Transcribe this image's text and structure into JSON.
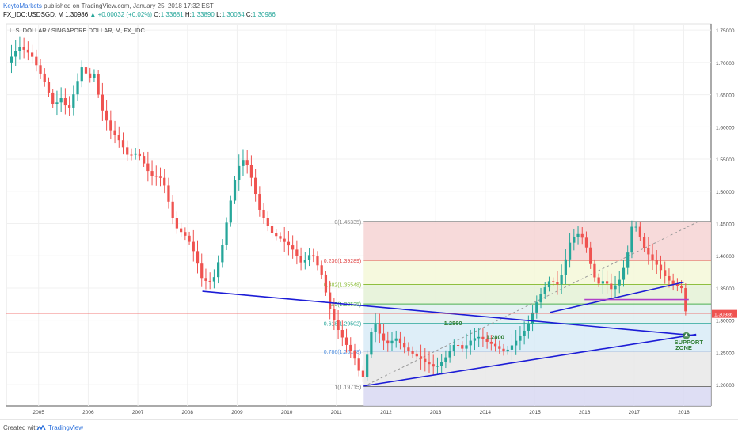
{
  "header": {
    "publisher": "KeytoMarkets",
    "published_text": "published on TradingView.com, January 25, 2018 17:32 EST",
    "symbol": "FX_IDC:USDSGD, M",
    "last": "1.30986",
    "change_arrow": "▲",
    "change": "+0.00032 (+0.02%)",
    "open_label": "O:",
    "open": "1.33681",
    "high_label": "H:",
    "high": "1.33890",
    "low_label": "L:",
    "low": "1.30034",
    "close_label": "C:",
    "close": "1.30986"
  },
  "footer": {
    "created_with": "Created with",
    "brand": "TradingView",
    "logo_icon": "tradingview-logo-icon"
  },
  "colors": {
    "up": "#26a69a",
    "down": "#ef5350",
    "trendline": "#1c1cd6",
    "resistance": "#b040c8",
    "brand": "#2a6fdb"
  },
  "chart_data": {
    "type": "candlestick",
    "title": "U.S. DOLLAR / SINGAPORE DOLLAR, M, FX_IDC",
    "xlabel": "",
    "ylabel": "",
    "x_ticks": [
      "2005",
      "2006",
      "2007",
      "2008",
      "2009",
      "2010",
      "2011",
      "2012",
      "2013",
      "2014",
      "2015",
      "2016",
      "2017",
      "2018"
    ],
    "y_ticks": [
      "1.20000",
      "1.25000",
      "1.30000",
      "1.35000",
      "1.40000",
      "1.45000",
      "1.50000",
      "1.55000",
      "1.60000",
      "1.65000",
      "1.70000",
      "1.75000"
    ],
    "ylim": [
      1.167,
      1.76
    ],
    "x_range": [
      2004.35,
      2018.55
    ],
    "grid": true,
    "last_price_label": "1.30986",
    "price_path": [
      [
        2004.37,
        1.7
      ],
      [
        2004.6,
        1.725
      ],
      [
        2004.85,
        1.712
      ],
      [
        2005.15,
        1.665
      ],
      [
        2005.3,
        1.632
      ],
      [
        2005.45,
        1.645
      ],
      [
        2005.6,
        1.625
      ],
      [
        2005.75,
        1.662
      ],
      [
        2005.9,
        1.7
      ],
      [
        2006.0,
        1.668
      ],
      [
        2006.1,
        1.69
      ],
      [
        2006.25,
        1.632
      ],
      [
        2006.45,
        1.595
      ],
      [
        2006.6,
        1.582
      ],
      [
        2006.8,
        1.555
      ],
      [
        2007.0,
        1.56
      ],
      [
        2007.25,
        1.525
      ],
      [
        2007.5,
        1.52
      ],
      [
        2007.75,
        1.445
      ],
      [
        2008.0,
        1.428
      ],
      [
        2008.15,
        1.402
      ],
      [
        2008.3,
        1.362
      ],
      [
        2008.45,
        1.36
      ],
      [
        2008.55,
        1.368
      ],
      [
        2008.7,
        1.415
      ],
      [
        2008.85,
        1.478
      ],
      [
        2009.0,
        1.535
      ],
      [
        2009.15,
        1.552
      ],
      [
        2009.25,
        1.532
      ],
      [
        2009.45,
        1.472
      ],
      [
        2009.7,
        1.435
      ],
      [
        2009.9,
        1.425
      ],
      [
        2010.1,
        1.412
      ],
      [
        2010.3,
        1.388
      ],
      [
        2010.5,
        1.405
      ],
      [
        2010.7,
        1.372
      ],
      [
        2010.85,
        1.322
      ],
      [
        2011.0,
        1.29
      ],
      [
        2011.2,
        1.262
      ],
      [
        2011.35,
        1.245
      ],
      [
        2011.45,
        1.222
      ],
      [
        2011.55,
        1.21
      ],
      [
        2011.65,
        1.262
      ],
      [
        2011.75,
        1.3
      ],
      [
        2011.85,
        1.282
      ],
      [
        2012.0,
        1.262
      ],
      [
        2012.2,
        1.272
      ],
      [
        2012.4,
        1.255
      ],
      [
        2012.6,
        1.245
      ],
      [
        2012.8,
        1.235
      ],
      [
        2013.0,
        1.226
      ],
      [
        2013.2,
        1.242
      ],
      [
        2013.4,
        1.265
      ],
      [
        2013.55,
        1.255
      ],
      [
        2013.7,
        1.268
      ],
      [
        2013.85,
        1.275
      ],
      [
        2014.0,
        1.268
      ],
      [
        2014.2,
        1.26
      ],
      [
        2014.4,
        1.25
      ],
      [
        2014.55,
        1.262
      ],
      [
        2014.7,
        1.275
      ],
      [
        2014.85,
        1.29
      ],
      [
        2015.0,
        1.322
      ],
      [
        2015.15,
        1.345
      ],
      [
        2015.3,
        1.362
      ],
      [
        2015.45,
        1.355
      ],
      [
        2015.55,
        1.372
      ],
      [
        2015.7,
        1.42
      ],
      [
        2015.85,
        1.435
      ],
      [
        2016.0,
        1.425
      ],
      [
        2016.1,
        1.392
      ],
      [
        2016.25,
        1.355
      ],
      [
        2016.4,
        1.362
      ],
      [
        2016.55,
        1.347
      ],
      [
        2016.7,
        1.362
      ],
      [
        2016.85,
        1.395
      ],
      [
        2016.95,
        1.445
      ],
      [
        2017.05,
        1.445
      ],
      [
        2017.2,
        1.412
      ],
      [
        2017.35,
        1.395
      ],
      [
        2017.5,
        1.382
      ],
      [
        2017.65,
        1.365
      ],
      [
        2017.8,
        1.355
      ],
      [
        2017.95,
        1.352
      ],
      [
        2018.0,
        1.32
      ],
      [
        2018.06,
        1.31
      ]
    ],
    "fibonacci": {
      "from": [
        2011.55,
        1.19715
      ],
      "to": [
        2018.3,
        1.45335
      ],
      "levels": [
        {
          "ratio": "0",
          "price": "1.45335",
          "value": 1.45335,
          "color": "#888888",
          "fill": "#f6d3d3"
        },
        {
          "ratio": "0.236",
          "price": "1.39289",
          "value": 1.39289,
          "color": "#e04848",
          "fill": "#f4f8d8"
        },
        {
          "ratio": "0.382",
          "price": "1.35548",
          "value": 1.35548,
          "color": "#8fbf3f",
          "fill": "#e4f1d6"
        },
        {
          "ratio": "0.5",
          "price": "1.32525",
          "value": 1.32525,
          "color": "#4caf50",
          "fill": "#dfeff0"
        },
        {
          "ratio": "0.618",
          "price": "1.29502",
          "value": 1.29502,
          "color": "#26a69a",
          "fill": "#d8ebf7"
        },
        {
          "ratio": "0.786",
          "price": "1.25198",
          "value": 1.25198,
          "color": "#4f8fe0",
          "fill": "#e8e8e8"
        },
        {
          "ratio": "1",
          "price": "1.19715",
          "value": 1.19715,
          "color": "#777777",
          "fill": "#d8d8f2"
        }
      ]
    },
    "lines": [
      {
        "name": "falling-trendline",
        "from": [
          2008.3,
          1.345
        ],
        "to": [
          2018.25,
          1.276
        ],
        "color": "#1c1cd6"
      },
      {
        "name": "rising-trendline",
        "from": [
          2011.55,
          1.198
        ],
        "to": [
          2018.25,
          1.278
        ],
        "color": "#1c1cd6"
      },
      {
        "name": "rising-channel-line",
        "from": [
          2015.3,
          1.312
        ],
        "to": [
          2018.0,
          1.359
        ],
        "color": "#1c1cd6"
      },
      {
        "name": "resistance-line",
        "from": [
          2016.0,
          1.332
        ],
        "to": [
          2018.1,
          1.332
        ],
        "color": "#b040c8"
      }
    ],
    "annotations": [
      {
        "text": "1.2860",
        "x": 2013.35,
        "y": 1.292,
        "color": "#2e7d32"
      },
      {
        "text": "1.2800",
        "x": 2014.2,
        "y": 1.271,
        "color": "#2e7d32"
      },
      {
        "text": "SUPPORT",
        "x": 2018.1,
        "y": 1.263,
        "color": "#2e7d32"
      },
      {
        "text": "ZONE",
        "x": 2018.0,
        "y": 1.254,
        "color": "#2e7d32"
      }
    ],
    "support_marker": {
      "x": 2018.05,
      "y": 1.276
    }
  }
}
